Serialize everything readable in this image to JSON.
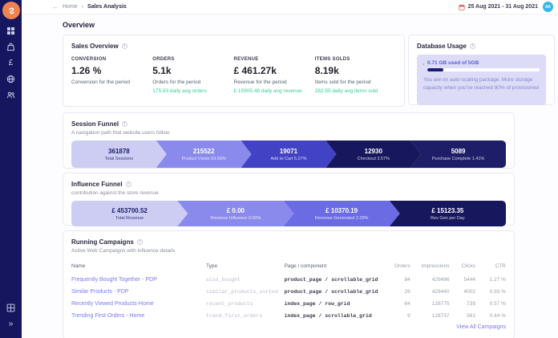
{
  "header": {
    "back_icon": "←",
    "breadcrumb": {
      "home": "Home",
      "separator": "›",
      "current": "Sales Analysis"
    },
    "date_range": "25 Aug 2021 - 31 Aug 2021",
    "avatar_initials": "AK"
  },
  "page": {
    "title": "Overview"
  },
  "colors": {
    "brand_orange": "#f0824f",
    "sidebar_navy": "#16165e",
    "positive_green": "#2fcf9f",
    "link_purple": "#7a7af2",
    "avatar_blue": "#35b7e8"
  },
  "sales_overview": {
    "title": "Sales Overview",
    "metrics": [
      {
        "label": "CONVERSION",
        "value": "1.26 %",
        "sub": "Conversion for the period",
        "daily": ""
      },
      {
        "label": "ORDERS",
        "value": "5.1k",
        "sub": "Orders for the period",
        "daily": "175.93 daily avg orders"
      },
      {
        "label": "REVENUE",
        "value": "£ 461.27k",
        "sub": "Revenue for the period",
        "daily": "£ 15905.48 daily avg revenue"
      },
      {
        "label": "ITEMS SOLDS",
        "value": "8.19k",
        "sub": "Items sold for the period",
        "daily": "282.55 daily avg items sold"
      }
    ]
  },
  "database_usage": {
    "title": "Database Usage",
    "usage_text": "0.71 GB used of 5GB",
    "usage_pct": 14,
    "note": "You are on auto-scaling package. More storage capacity when you've reached 90% of provisioned"
  },
  "session_funnel": {
    "title": "Session Funnel",
    "subtitle": "A navigation path that website users follow",
    "stages": [
      {
        "value": "361878",
        "label": "Total Sessions",
        "color": "#cdcdf4"
      },
      {
        "value": "215522",
        "label": "Product Views 59.56%",
        "color": "#8a8aec"
      },
      {
        "value": "19071",
        "label": "Add to Cart 5.27%",
        "color": "#4242c4"
      },
      {
        "value": "12930",
        "label": "Checkout 3.57%",
        "color": "#17175e"
      },
      {
        "value": "5089",
        "label": "Purchase Complete 1.41%",
        "color": "#1d1d68"
      }
    ]
  },
  "influence_funnel": {
    "title": "Influence Funnel",
    "subtitle": "contribution against the store revenue",
    "stages": [
      {
        "value": "£ 453700.52",
        "label": "Total Revenue",
        "color": "#cdcdf4"
      },
      {
        "value": "£ 0.00",
        "label": "Revenue Influence 0.00%",
        "color": "#8a8aec"
      },
      {
        "value": "£ 10370.19",
        "label": "Revenue Generated 2.29%",
        "color": "#6b6be4"
      },
      {
        "value": "£ 15123.35",
        "label": "Rev Gen per Day",
        "color": "#17175e"
      }
    ]
  },
  "campaigns": {
    "title": "Running Campaigns",
    "subtitle": "Active Web Campaigns with influence details",
    "columns": [
      "Name",
      "Type",
      "Page / component",
      "Orders",
      "Impressions",
      "Clicks",
      "CTR"
    ],
    "rows": [
      {
        "name": "Frequently Bought Together - PDP",
        "type": "also_bought",
        "page": "product_page / scrollable_grid",
        "orders": "84",
        "impressions": "429496",
        "clicks": "5444",
        "ctr": "1.27 %"
      },
      {
        "name": "Similar Products - PDP",
        "type": "similar_products_sorted",
        "page": "product_page / scrollable_grid",
        "orders": "26",
        "impressions": "429440",
        "clicks": "4002",
        "ctr": "0.93 %"
      },
      {
        "name": "Recently Viewed Products-Home",
        "type": "recent_products",
        "page": "index_page / row_grid",
        "orders": "64",
        "impressions": "128775",
        "clicks": "739",
        "ctr": "0.57 %"
      },
      {
        "name": "Trending First Orders - Home",
        "type": "trend_first_orders",
        "page": "index_page / scrollable_grid",
        "orders": "9",
        "impressions": "128737",
        "clicks": "561",
        "ctr": "0.44 %"
      }
    ],
    "view_all": "View All Campaigns"
  }
}
